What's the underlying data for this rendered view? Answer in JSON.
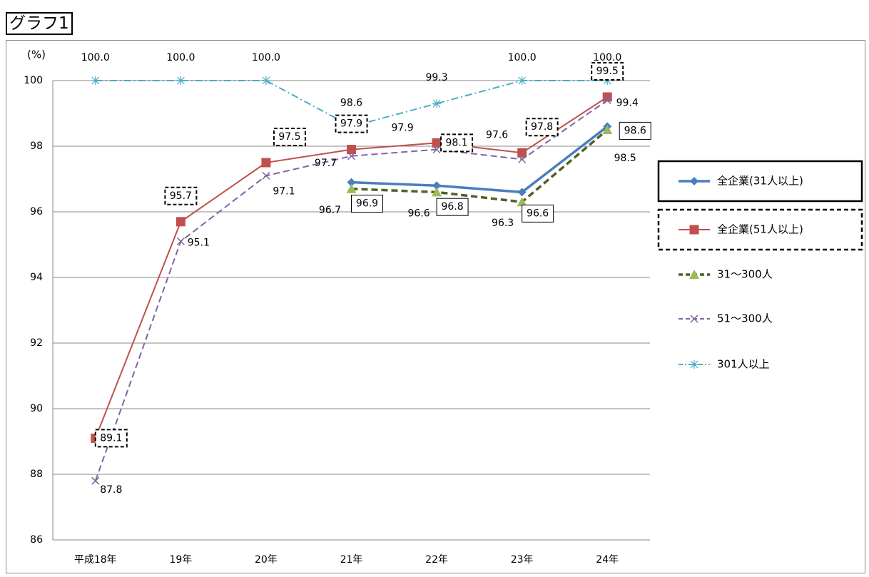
{
  "header": {
    "title": "グラフ1"
  },
  "chart_data": {
    "type": "line",
    "ylabel": "(%)",
    "ylim": [
      86,
      100
    ],
    "yticks": [
      86,
      88,
      90,
      92,
      94,
      96,
      98,
      100
    ],
    "categories": [
      "平成18年",
      "19年",
      "20年",
      "21年",
      "22年",
      "23年",
      "24年"
    ],
    "grid": true,
    "legend_position": "right",
    "series": [
      {
        "name": "全企業(31人以上)",
        "color": "#4a7ebf",
        "marker": "diamond",
        "dash": "solid",
        "values": [
          null,
          null,
          null,
          96.9,
          96.8,
          96.6,
          98.6
        ],
        "labels": [
          null,
          null,
          null,
          "96.9",
          "96.8",
          "96.6",
          "98.6"
        ]
      },
      {
        "name": "全企業(51人以上)",
        "color": "#c0504d",
        "marker": "square",
        "dash": "solid",
        "values": [
          89.1,
          95.7,
          97.5,
          97.9,
          98.1,
          97.8,
          99.5
        ],
        "labels": [
          "89.1",
          "95.7",
          "97.5",
          "97.9",
          "98.1",
          "97.8",
          "99.5"
        ]
      },
      {
        "name": "31〜300人",
        "color": "#4f6228",
        "markerColor": "#9bbb59",
        "marker": "triangle",
        "dash": "dashed",
        "values": [
          null,
          null,
          null,
          96.7,
          96.6,
          96.3,
          98.5
        ],
        "labels": [
          null,
          null,
          null,
          "96.7",
          "96.6",
          "96.3",
          "98.5"
        ]
      },
      {
        "name": "51〜300人",
        "color": "#8064a2",
        "marker": "x",
        "dash": "dashed",
        "values": [
          87.8,
          95.1,
          97.1,
          97.7,
          97.9,
          97.6,
          99.4
        ],
        "labels": [
          "87.8",
          "95.1",
          "97.1",
          "97.7",
          "97.9",
          "97.6",
          "99.4"
        ]
      },
      {
        "name": "301人以上",
        "color": "#4bacc6",
        "marker": "star",
        "dash": "dashdot",
        "values": [
          100.0,
          100.0,
          100.0,
          98.6,
          99.3,
          100.0,
          100.0
        ],
        "labels": [
          "100.0",
          "100.0",
          "100.0",
          "98.6",
          "99.3",
          "100.0",
          "100.0"
        ]
      }
    ]
  }
}
